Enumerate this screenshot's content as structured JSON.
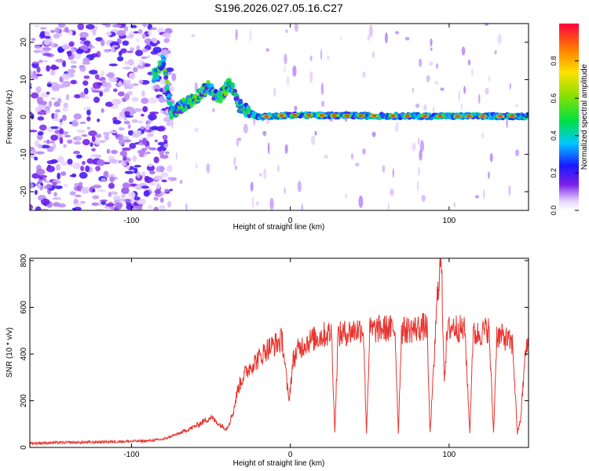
{
  "title": "S196.2026.027.05.16.C27",
  "colors": {
    "snr_line": "#e8342e",
    "axis": "#000000"
  },
  "chart_data": [
    {
      "type": "heatmap",
      "name": "spectrogram",
      "xlabel": "Height of straight line (km)",
      "ylabel": "Frequency (Hz)",
      "xlim": [
        -164,
        150
      ],
      "ylim": [
        -25,
        25
      ],
      "xticks": [
        -100,
        0,
        100
      ],
      "yticks": [
        -20,
        -10,
        0,
        10,
        20
      ],
      "colorbar": {
        "label": "Normalized spectral amplitude",
        "range": [
          0,
          1
        ],
        "ticks": [
          0.0,
          0.2,
          0.4,
          0.6,
          0.8
        ],
        "tick_labels": [
          "0.0",
          "0.2",
          "0.4",
          "0.6",
          "0.8"
        ]
      },
      "ridge": [
        {
          "x": -85,
          "y": 11
        },
        {
          "x": -80,
          "y": 15
        },
        {
          "x": -75,
          "y": 1
        },
        {
          "x": -68,
          "y": 3
        },
        {
          "x": -60,
          "y": 5
        },
        {
          "x": -52,
          "y": 8
        },
        {
          "x": -45,
          "y": 5
        },
        {
          "x": -38,
          "y": 9
        },
        {
          "x": -32,
          "y": 3
        },
        {
          "x": -25,
          "y": 1
        },
        {
          "x": -20,
          "y": 0
        },
        {
          "x": 0,
          "y": 0.5
        },
        {
          "x": 50,
          "y": 0.3
        },
        {
          "x": 100,
          "y": 0.2
        },
        {
          "x": 150,
          "y": 0.2
        }
      ]
    },
    {
      "type": "line",
      "name": "snr",
      "xlabel": "Height of straight line (km)",
      "ylabel": "SNR (10 * v/v)",
      "xlim": [
        -164,
        150
      ],
      "ylim": [
        0,
        810
      ],
      "xticks": [
        -100,
        0,
        100
      ],
      "yticks": [
        0,
        200,
        400,
        600,
        800
      ],
      "series": [
        {
          "name": "SNR",
          "x": [
            -164,
            -150,
            -130,
            -110,
            -90,
            -80,
            -70,
            -60,
            -55,
            -50,
            -45,
            -40,
            -36,
            -33,
            -30,
            -25,
            -20,
            -15,
            -10,
            -5,
            -1,
            2,
            5,
            10,
            20,
            26,
            28,
            30,
            40,
            46,
            48,
            50,
            60,
            66,
            68,
            70,
            80,
            86,
            88,
            90,
            93,
            95,
            97,
            99,
            102,
            110,
            113,
            115,
            120,
            125,
            128,
            130,
            135,
            140,
            143,
            145,
            148,
            150
          ],
          "y": [
            18,
            20,
            22,
            25,
            28,
            35,
            60,
            90,
            110,
            130,
            100,
            80,
            150,
            250,
            300,
            350,
            380,
            420,
            440,
            460,
            200,
            380,
            420,
            450,
            480,
            490,
            60,
            480,
            500,
            510,
            60,
            500,
            510,
            505,
            60,
            500,
            510,
            520,
            60,
            300,
            700,
            810,
            300,
            500,
            520,
            500,
            60,
            480,
            490,
            510,
            60,
            480,
            470,
            440,
            60,
            120,
            400,
            450
          ]
        }
      ]
    }
  ]
}
